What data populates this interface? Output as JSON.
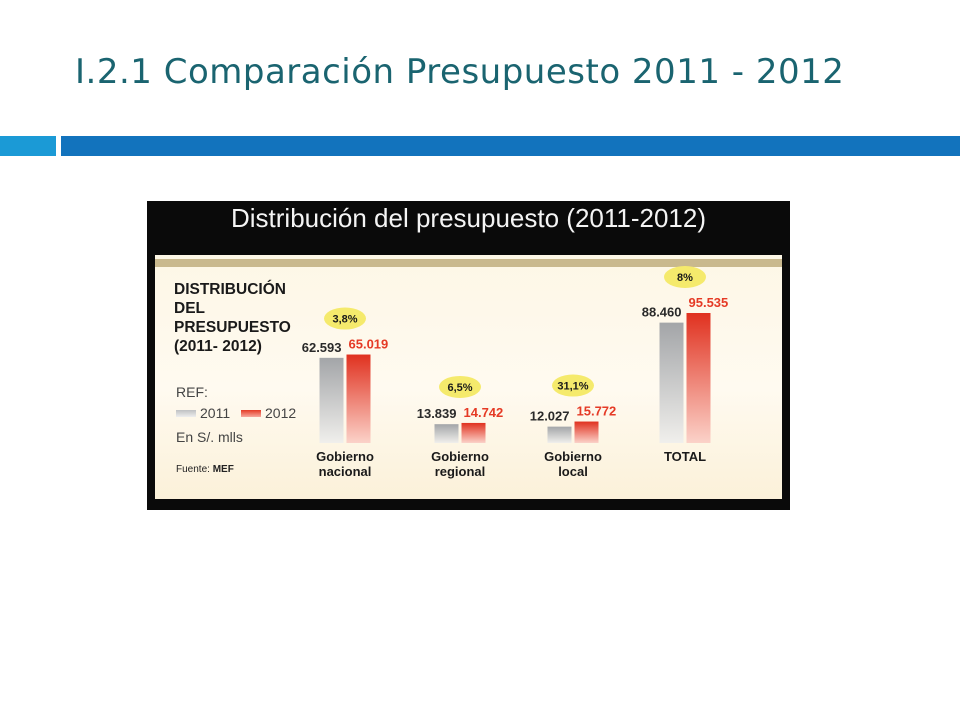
{
  "slide": {
    "title": "I.2.1 Comparación Presupuesto 2011 - 2012"
  },
  "colors": {
    "accent_light": "#1b9ad6",
    "accent_dark": "#1273bd",
    "series_2011": "#a9abad",
    "series_2012": "#e53a25",
    "badge": "#f5ea6c"
  },
  "figure": {
    "title": "Distribución del presupuesto (2011-2012)",
    "heading": "DISTRIBUCIÓN\nDEL\nPRESUPUESTO\n(2011- 2012)",
    "ref_label": "REF:",
    "unit_label": "En S/. mlls",
    "source_prefix": "Fuente: ",
    "source_name": "MEF"
  },
  "chart_data": {
    "type": "bar",
    "title": "Distribución del presupuesto (2011-2012)",
    "unit": "En S/. mlls",
    "categories": [
      "Gobierno nacional",
      "Gobierno regional",
      "Gobierno local",
      "TOTAL"
    ],
    "category_lines": [
      [
        "Gobierno",
        "nacional"
      ],
      [
        "Gobierno",
        "regional"
      ],
      [
        "Gobierno",
        "local"
      ],
      [
        "TOTAL"
      ]
    ],
    "series": [
      {
        "name": "2011",
        "values": [
          62593,
          13839,
          12027,
          88460
        ],
        "labels": [
          "62.593",
          "13.839",
          "12.027",
          "88.460"
        ]
      },
      {
        "name": "2012",
        "values": [
          65019,
          14742,
          15772,
          95535
        ],
        "labels": [
          "65.019",
          "14.742",
          "15.772",
          "95.535"
        ]
      }
    ],
    "growth_labels": [
      "3,8%",
      "6,5%",
      "31,1%",
      "8%"
    ],
    "legend_placement": "left",
    "grid": false
  }
}
